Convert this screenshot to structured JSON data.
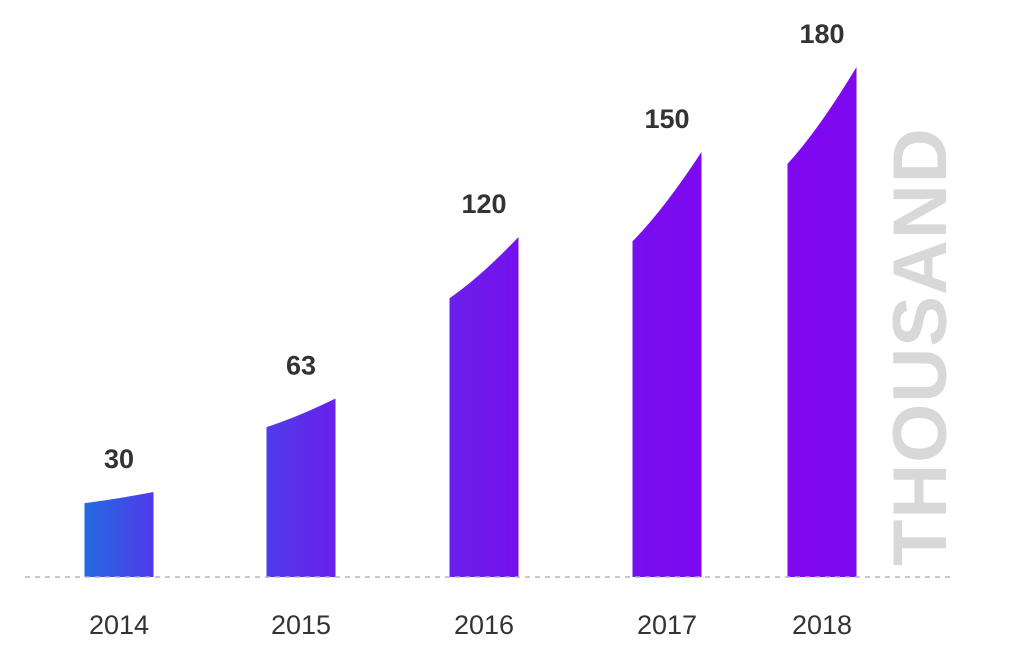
{
  "chart_data": {
    "type": "bar",
    "categories": [
      "2014",
      "2015",
      "2016",
      "2017",
      "2018"
    ],
    "values": [
      30,
      63,
      120,
      150,
      180
    ],
    "unit_label": "THOUSAND",
    "ylim": [
      0,
      180
    ],
    "grid": false,
    "colors": [
      "#246BE0",
      "#4F3BEA",
      "#6A20EB",
      "#7610EE",
      "#7E08F0"
    ],
    "label_color": "#333333",
    "unit_label_color": "#D8D8D8",
    "baseline_color": "#B5B5B5"
  }
}
